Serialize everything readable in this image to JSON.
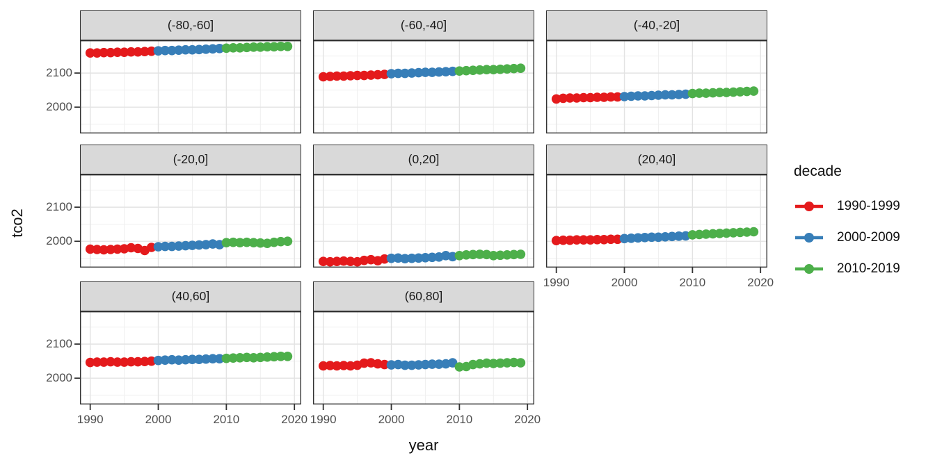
{
  "figure": {
    "y_axis_title": "tco2",
    "x_axis_title": "year"
  },
  "legend": {
    "title": "decade",
    "entries": [
      {
        "label": "1990-1999",
        "color": "#E41A1C"
      },
      {
        "label": "2000-2009",
        "color": "#377EB8"
      },
      {
        "label": "2010-2019",
        "color": "#4DAF4A"
      }
    ]
  },
  "chart_data": {
    "type": "scatter",
    "xlabel": "year",
    "ylabel": "tco2",
    "legend_title": "decade",
    "legend_position": "right",
    "grid": "on",
    "x": [
      1990,
      1991,
      1992,
      1993,
      1994,
      1995,
      1996,
      1997,
      1998,
      1999,
      2000,
      2001,
      2002,
      2003,
      2004,
      2005,
      2006,
      2007,
      2008,
      2009,
      2010,
      2011,
      2012,
      2013,
      2014,
      2015,
      2016,
      2017,
      2018,
      2019
    ],
    "x_ticks": [
      1990,
      2000,
      2010,
      2020
    ],
    "x_tick_labels": [
      "1990",
      "2000",
      "2010",
      "2020"
    ],
    "x_minor": [
      1995,
      2005,
      2015
    ],
    "y_ticks": [
      2100,
      2000
    ],
    "y_tick_labels": [
      "2100",
      "2000"
    ],
    "y_minor": [
      2150,
      2050,
      1950
    ],
    "x_range": [
      1988.5,
      2021
    ],
    "y_range": [
      1923,
      2196
    ],
    "points_per_decade": 10,
    "facets": [
      {
        "label": "(-80,-60]",
        "values": [
          2159,
          2159,
          2160,
          2160,
          2161,
          2161,
          2162,
          2162,
          2163,
          2164,
          2165,
          2166,
          2166,
          2167,
          2168,
          2168,
          2169,
          2170,
          2171,
          2172,
          2173,
          2174,
          2174,
          2175,
          2176,
          2176,
          2177,
          2177,
          2178,
          2178
        ]
      },
      {
        "label": "(-60,-40]",
        "values": [
          2089,
          2090,
          2091,
          2091,
          2092,
          2093,
          2093,
          2094,
          2095,
          2096,
          2098,
          2099,
          2099,
          2100,
          2101,
          2102,
          2102,
          2103,
          2104,
          2105,
          2106,
          2107,
          2108,
          2109,
          2110,
          2110,
          2111,
          2112,
          2113,
          2114
        ]
      },
      {
        "label": "(-40,-20]",
        "values": [
          2024,
          2026,
          2027,
          2027,
          2028,
          2028,
          2029,
          2029,
          2030,
          2030,
          2031,
          2032,
          2033,
          2033,
          2034,
          2035,
          2036,
          2036,
          2037,
          2038,
          2040,
          2041,
          2041,
          2042,
          2043,
          2043,
          2044,
          2045,
          2046,
          2047
        ]
      },
      {
        "label": "(-20,0]",
        "values": [
          1977,
          1976,
          1975,
          1976,
          1977,
          1978,
          1981,
          1979,
          1973,
          1982,
          1984,
          1985,
          1985,
          1986,
          1987,
          1988,
          1989,
          1990,
          1992,
          1990,
          1996,
          1997,
          1996,
          1997,
          1996,
          1995,
          1994,
          1997,
          1999,
          2000
        ]
      },
      {
        "label": "(0,20]",
        "values": [
          1941,
          1940,
          1941,
          1942,
          1941,
          1940,
          1944,
          1946,
          1943,
          1948,
          1950,
          1951,
          1949,
          1950,
          1951,
          1952,
          1953,
          1954,
          1958,
          1955,
          1958,
          1960,
          1961,
          1962,
          1961,
          1958,
          1959,
          1960,
          1961,
          1962
        ]
      },
      {
        "label": "(20,40]",
        "values": [
          2002,
          2003,
          2003,
          2004,
          2004,
          2004,
          2005,
          2005,
          2006,
          2006,
          2008,
          2009,
          2010,
          2011,
          2012,
          2012,
          2013,
          2014,
          2015,
          2016,
          2019,
          2020,
          2021,
          2022,
          2023,
          2024,
          2025,
          2026,
          2027,
          2028
        ]
      },
      {
        "label": "(40,60]",
        "values": [
          2046,
          2047,
          2047,
          2048,
          2047,
          2047,
          2048,
          2048,
          2049,
          2050,
          2052,
          2053,
          2054,
          2053,
          2054,
          2055,
          2055,
          2056,
          2057,
          2057,
          2058,
          2059,
          2060,
          2061,
          2060,
          2061,
          2062,
          2063,
          2064,
          2064
        ]
      },
      {
        "label": "(60,80]",
        "values": [
          2036,
          2037,
          2036,
          2037,
          2036,
          2038,
          2044,
          2045,
          2042,
          2040,
          2039,
          2040,
          2038,
          2038,
          2039,
          2040,
          2041,
          2041,
          2042,
          2045,
          2033,
          2034,
          2040,
          2042,
          2044,
          2043,
          2044,
          2045,
          2046,
          2045
        ]
      }
    ],
    "colors": {
      "grid_major": "#e3e3e3",
      "grid_minor": "#efefef",
      "panel_border": "#333333",
      "strip_fill": "#d9d9d9",
      "tick_text": "#4d4d4d"
    }
  }
}
